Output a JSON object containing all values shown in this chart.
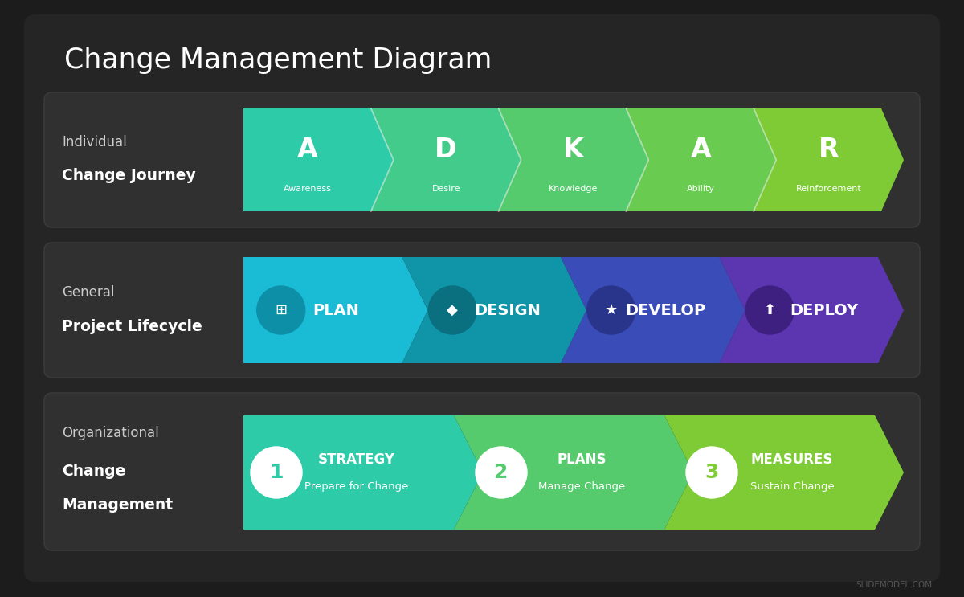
{
  "title": "Change Management Diagram",
  "bg_outer": "#1c1c1c",
  "bg_card": "#252525",
  "panel_color": "#303030",
  "title_color": "#ffffff",
  "watermark": "SLIDEMODEL.COM",
  "row1_label1": "Individual",
  "row1_label2": "Change Journey",
  "row1_letters": [
    "A",
    "D",
    "K",
    "A",
    "R"
  ],
  "row1_subs": [
    "Awareness",
    "Desire",
    "Knowledge",
    "Ability",
    "Reinforcement"
  ],
  "row1_c1": "#2ecba8",
  "row1_c2": "#7ecb35",
  "row2_label1": "General",
  "row2_label2": "Project Lifecycle",
  "row2_labels": [
    "PLAN",
    "DESIGN",
    "DEVELOP",
    "DEPLOY"
  ],
  "row2_colors": [
    "#1abcd5",
    "#1095a8",
    "#3a4cb8",
    "#5c35b0"
  ],
  "row2_icon_colors": [
    "#0d8fa8",
    "#0a7080",
    "#28358a",
    "#3d2080"
  ],
  "row3_label1": "Organizational",
  "row3_label2": "Change",
  "row3_label3": "Management",
  "row3_items": [
    {
      "num": "1",
      "title": "STRATEGY",
      "sub": "Prepare for Change"
    },
    {
      "num": "2",
      "title": "PLANS",
      "sub": "Manage Change"
    },
    {
      "num": "3",
      "title": "MEASURES",
      "sub": "Sustain Change"
    }
  ],
  "row3_c1": "#2ecba8",
  "row3_c2": "#7ecb35"
}
